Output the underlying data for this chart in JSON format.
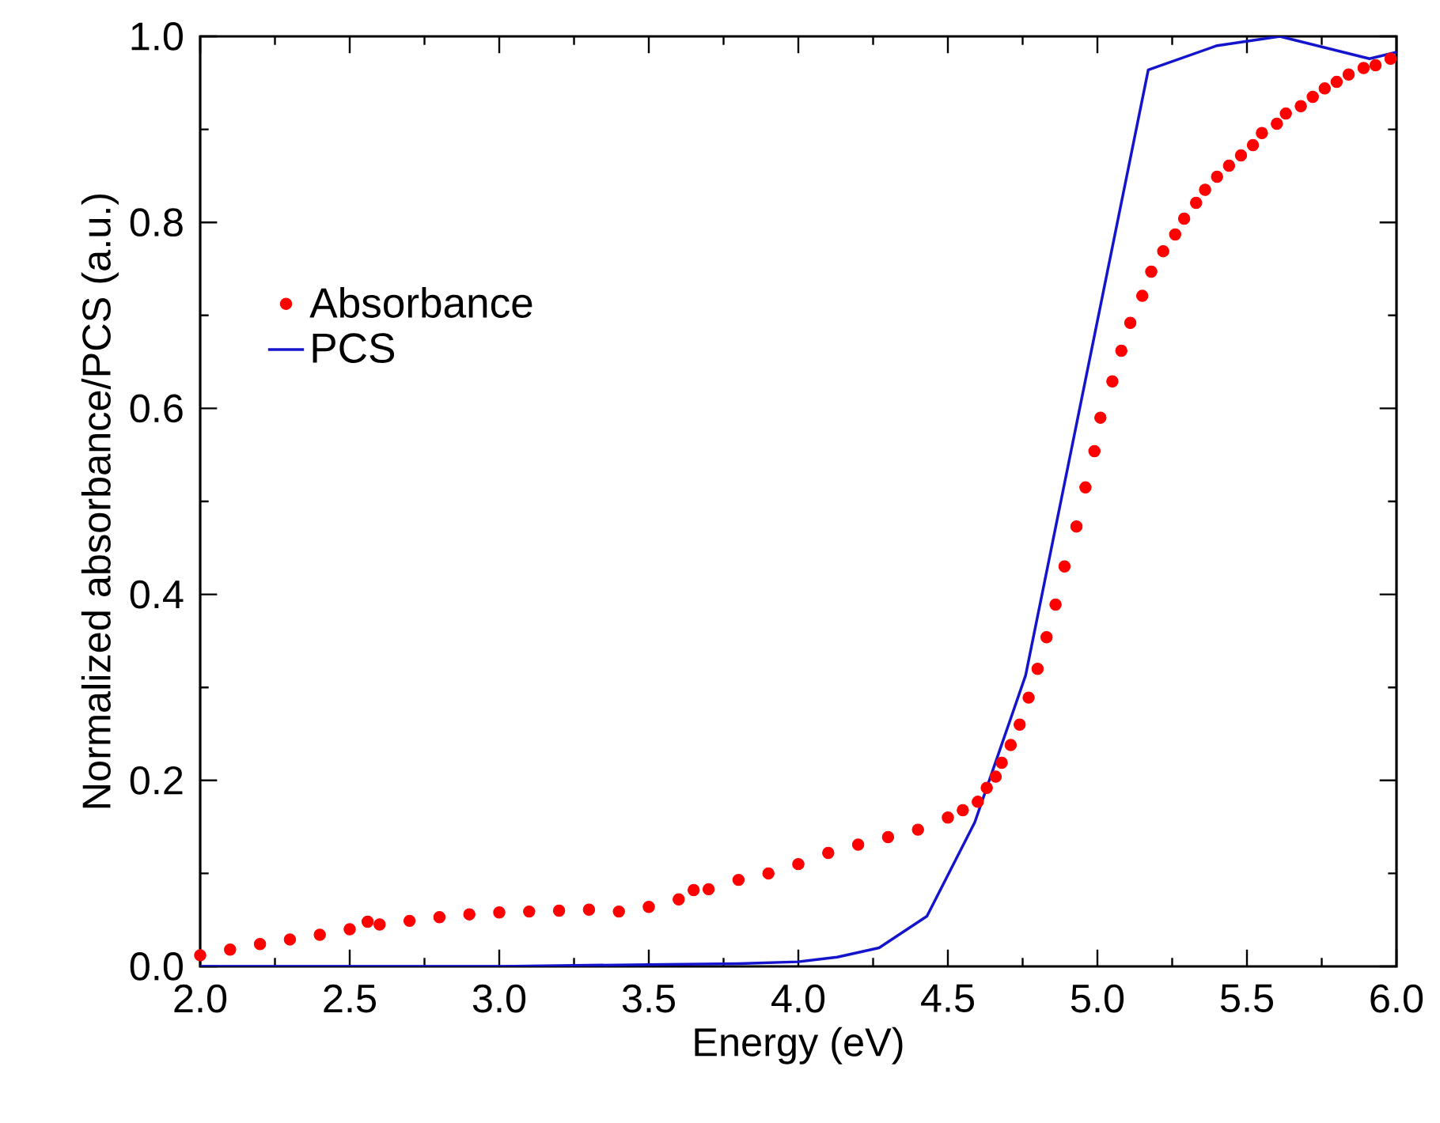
{
  "chart_data": {
    "type": "line",
    "xlabel": "Energy (eV)",
    "ylabel": "Normalized absorbance/PCS (a.u.)",
    "xlim": [
      2,
      6
    ],
    "ylim": [
      0,
      1
    ],
    "xticks": [
      {
        "value": 2,
        "label": "2.0"
      },
      2.5,
      {
        "value": 3,
        "label": "3.0"
      },
      3.5,
      {
        "value": 4,
        "label": "4.0"
      },
      4.5,
      {
        "value": 5,
        "label": "5.0"
      },
      5.5,
      {
        "value": 6,
        "label": "6.0"
      }
    ],
    "yticks": [
      {
        "value": 0,
        "label": "0.0"
      },
      0.2,
      0.4,
      0.6,
      0.8,
      {
        "value": 1,
        "label": "1.0"
      }
    ],
    "legend": "left",
    "grid": false,
    "series": [
      {
        "name": "Absorbance",
        "type": "scatter",
        "marker": "circle",
        "color": "#ff0000",
        "x": [
          2.0,
          2.1,
          2.2,
          2.3,
          2.4,
          2.5,
          2.56,
          2.6,
          2.7,
          2.8,
          2.9,
          3.0,
          3.1,
          3.2,
          3.3,
          3.4,
          3.5,
          3.6,
          3.65,
          3.7,
          3.8,
          3.9,
          4.0,
          4.1,
          4.2,
          4.3,
          4.4,
          4.5,
          4.55,
          4.6,
          4.63,
          4.66,
          4.68,
          4.71,
          4.74,
          4.77,
          4.8,
          4.83,
          4.86,
          4.89,
          4.93,
          4.96,
          4.99,
          5.01,
          5.05,
          5.08,
          5.11,
          5.15,
          5.18,
          5.22,
          5.26,
          5.29,
          5.33,
          5.36,
          5.4,
          5.44,
          5.48,
          5.52,
          5.55,
          5.6,
          5.63,
          5.68,
          5.72,
          5.76,
          5.8,
          5.84,
          5.89,
          5.93,
          5.98
        ],
        "values": [
          0.012,
          0.018,
          0.024,
          0.029,
          0.034,
          0.04,
          0.048,
          0.045,
          0.049,
          0.053,
          0.056,
          0.058,
          0.059,
          0.06,
          0.061,
          0.059,
          0.064,
          0.072,
          0.082,
          0.083,
          0.093,
          0.1,
          0.11,
          0.122,
          0.131,
          0.139,
          0.147,
          0.16,
          0.168,
          0.177,
          0.192,
          0.204,
          0.219,
          0.238,
          0.26,
          0.289,
          0.32,
          0.354,
          0.389,
          0.43,
          0.473,
          0.515,
          0.554,
          0.59,
          0.629,
          0.662,
          0.692,
          0.721,
          0.747,
          0.769,
          0.787,
          0.804,
          0.821,
          0.835,
          0.849,
          0.861,
          0.872,
          0.883,
          0.896,
          0.906,
          0.917,
          0.925,
          0.935,
          0.944,
          0.951,
          0.959,
          0.966,
          0.969,
          0.976
        ]
      },
      {
        "name": "PCS",
        "line_style": "solid",
        "color": "#1414cc",
        "x": [
          2.0,
          3.0,
          3.5,
          3.8,
          4.0,
          4.13,
          4.27,
          4.43,
          4.59,
          4.76,
          5.17,
          5.4,
          5.61,
          5.91,
          6.0
        ],
        "values": [
          0.0,
          0.0,
          0.002,
          0.003,
          0.005,
          0.01,
          0.02,
          0.054,
          0.155,
          0.313,
          0.964,
          0.99,
          1.0,
          0.976,
          0.983
        ]
      }
    ]
  }
}
